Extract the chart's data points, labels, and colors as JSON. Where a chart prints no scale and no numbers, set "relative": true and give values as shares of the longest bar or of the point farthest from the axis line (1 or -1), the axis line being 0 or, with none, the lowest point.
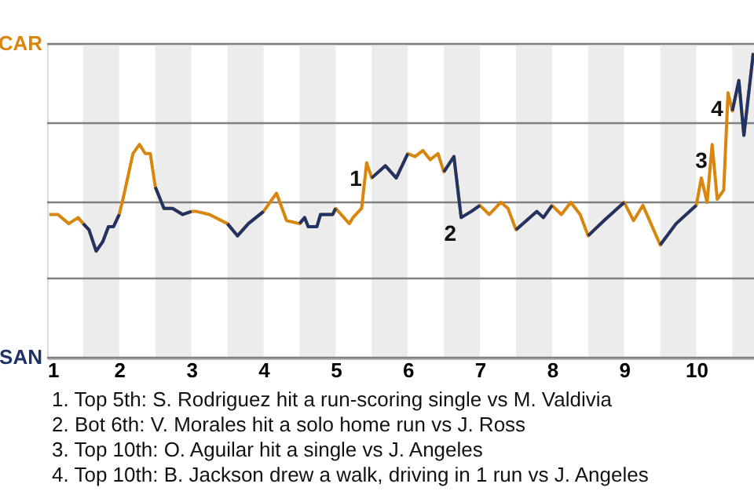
{
  "chart_data": {
    "type": "line",
    "relative": true,
    "x": [
      1.03,
      1.15,
      1.3,
      1.43,
      1.5,
      1.58,
      1.68,
      1.77,
      1.85,
      1.92,
      2.0,
      2.07,
      2.19,
      2.28,
      2.36,
      2.43,
      2.5,
      2.62,
      2.74,
      2.88,
      3.0,
      3.07,
      3.25,
      3.5,
      3.64,
      3.79,
      4.0,
      4.18,
      4.32,
      4.5,
      4.57,
      4.62,
      4.74,
      4.79,
      4.96,
      5.0,
      5.19,
      5.24,
      5.36,
      5.43,
      5.5,
      5.69,
      5.84,
      6.0,
      6.1,
      6.21,
      6.31,
      6.42,
      6.5,
      6.64,
      6.74,
      6.88,
      7.0,
      7.13,
      7.29,
      7.39,
      7.5,
      7.79,
      7.88,
      8.0,
      8.13,
      8.26,
      8.39,
      8.5,
      8.72,
      9.0,
      9.13,
      9.26,
      9.5,
      9.72,
      10.0,
      10.07,
      10.15,
      10.22,
      10.29,
      10.38,
      10.44,
      10.5,
      10.59,
      10.66,
      10.79
    ],
    "series": [
      {
        "color": "#d9860e",
        "values": [
          0.47,
          0.47,
          0.44,
          0.46,
          0.44,
          0.42,
          0.35,
          0.38,
          0.43,
          0.43,
          0.47,
          0.54,
          0.67,
          0.7,
          0.67,
          0.67,
          0.56,
          0.49,
          0.49,
          0.47,
          0.48,
          0.48,
          0.47,
          0.44,
          0.4,
          0.44,
          0.48,
          0.54,
          0.45,
          0.44,
          0.46,
          0.43,
          0.43,
          0.47,
          0.47,
          0.49,
          0.44,
          0.46,
          0.49,
          0.64,
          0.59,
          0.63,
          0.59,
          0.67,
          0.66,
          0.68,
          0.65,
          0.67,
          0.61,
          0.66,
          0.46,
          0.48,
          0.5,
          0.47,
          0.51,
          0.49,
          0.42,
          0.48,
          0.46,
          0.5,
          0.47,
          0.51,
          0.47,
          0.4,
          0.45,
          0.51,
          0.45,
          0.5,
          0.37,
          0.44,
          0.5,
          0.59,
          0.51,
          0.7,
          0.52,
          0.55,
          0.87,
          0.81,
          0.91,
          0.73,
          1
        ]
      },
      {
        "color": "#1f3366",
        "values": [
          null,
          null,
          null,
          null,
          0.44,
          0.42,
          0.35,
          0.38,
          0.43,
          0.43,
          0.47,
          null,
          null,
          null,
          null,
          null,
          0.56,
          0.49,
          0.49,
          0.47,
          0.48,
          null,
          null,
          0.44,
          0.4,
          0.44,
          0.48,
          null,
          null,
          0.44,
          0.46,
          0.43,
          0.43,
          0.47,
          0.47,
          0.49,
          null,
          null,
          null,
          null,
          0.59,
          0.63,
          0.59,
          0.67,
          null,
          null,
          null,
          null,
          0.61,
          0.66,
          0.46,
          0.48,
          0.5,
          null,
          null,
          null,
          0.42,
          0.48,
          0.46,
          0.5,
          null,
          null,
          null,
          0.4,
          0.45,
          0.51,
          null,
          null,
          0.37,
          0.44,
          0.5,
          null,
          null,
          null,
          null,
          null,
          null,
          0.81,
          0.91,
          0.73,
          1
        ]
      }
    ],
    "xlim": [
      1,
      10.8
    ],
    "xticks": [
      1,
      2,
      3,
      4,
      5,
      6,
      7,
      8,
      9,
      10
    ],
    "ref_lines": [
      {
        "axis": "y",
        "value": 1.03,
        "label": "CAR",
        "color": "#808080"
      },
      {
        "axis": "y",
        "value": 0.77,
        "label": null,
        "color": "#808080"
      },
      {
        "axis": "y",
        "value": 0.51,
        "label": null,
        "color": "#808080"
      },
      {
        "axis": "y",
        "value": 0.26,
        "label": null,
        "color": "#808080"
      },
      {
        "axis": "y",
        "value": 0,
        "label": "SAN",
        "color": "#808080"
      }
    ],
    "bands": [
      {
        "axis": "x",
        "from": 1.5,
        "to": 2,
        "color": "#ececec"
      },
      {
        "axis": "x",
        "from": 2.5,
        "to": 3,
        "color": "#ececec"
      },
      {
        "axis": "x",
        "from": 3.5,
        "to": 4,
        "color": "#ececec"
      },
      {
        "axis": "x",
        "from": 4.5,
        "to": 5,
        "color": "#ececec"
      },
      {
        "axis": "x",
        "from": 5.5,
        "to": 6,
        "color": "#ececec"
      },
      {
        "axis": "x",
        "from": 6.5,
        "to": 7,
        "color": "#ececec"
      },
      {
        "axis": "x",
        "from": 7.5,
        "to": 8,
        "color": "#ececec"
      },
      {
        "axis": "x",
        "from": 8.5,
        "to": 9,
        "color": "#ececec"
      },
      {
        "axis": "x",
        "from": 9.5,
        "to": 10,
        "color": "#ececec"
      },
      {
        "axis": "x",
        "from": 10.5,
        "to": 10.8,
        "color": "#ececec"
      }
    ],
    "annotations": [
      {
        "text": "1",
        "x": 5.43,
        "y": 0.64
      },
      {
        "text": "2",
        "x": 6.74,
        "y": 0.46
      },
      {
        "text": "3",
        "x": 10.22,
        "y": 0.7
      },
      {
        "text": "4",
        "x": 10.44,
        "y": 0.87
      },
      "1. Top 5th: S. Rodriguez hit a run-scoring single vs M. Valdivia",
      "2. Bot 6th: V. Morales hit a solo home run vs J. Ross",
      "3. Top 10th: O. Aguilar hit a single vs J. Angeles",
      "4. Top 10th: B. Jackson drew a walk, driving in 1 run vs J. Angeles"
    ]
  }
}
